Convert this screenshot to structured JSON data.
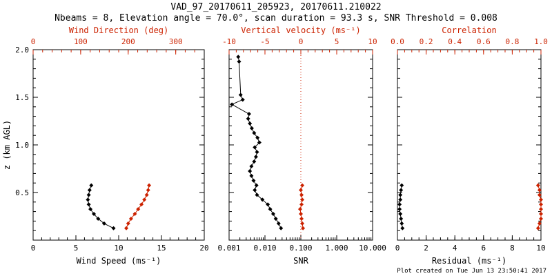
{
  "colors": {
    "black": "#000000",
    "red": "#cc2200",
    "background": "#ffffff"
  },
  "chart_data": {
    "type": "line",
    "title": "VAD_97_20170611_205923, 20170611.210022",
    "subtitle": "Nbeams = 8, Elevation angle = 70.0°, scan duration = 93.3 s, SNR Threshold = 0.008",
    "footer": "Plot created on Tue Jun 13 23:50:41 2017",
    "ylabel": "z (km AGL)",
    "ylim": [
      0,
      2.0
    ],
    "yticks": [
      0,
      0.5,
      1.0,
      1.5,
      2.0
    ],
    "ytick_labels": [
      "",
      "0.5",
      "1.0",
      "1.5",
      "2.0"
    ],
    "y_minor_step": 0.1,
    "panels": [
      {
        "id": "wind",
        "bottom_axis": {
          "label": "Wind Speed (ms⁻¹)",
          "lim": [
            0,
            20
          ],
          "ticks": [
            0,
            5,
            10,
            15,
            20
          ],
          "tick_labels": [
            "0",
            "5",
            "10",
            "15",
            "20"
          ],
          "minor_step": 1,
          "color": "black"
        },
        "top_axis": {
          "label": "Wind Direction (deg)",
          "lim": [
            0,
            360
          ],
          "ticks": [
            0,
            100,
            200,
            300
          ],
          "tick_labels": [
            "0",
            "100",
            "200",
            "300"
          ],
          "minor_step": 20,
          "color": "red"
        },
        "series": [
          {
            "name": "wind-speed",
            "axis": "bottom",
            "color": "black",
            "z": [
              0.125,
              0.175,
              0.225,
              0.275,
              0.325,
              0.375,
              0.425,
              0.475,
              0.525,
              0.575
            ],
            "values": [
              9.4,
              8.3,
              7.6,
              7.1,
              6.7,
              6.5,
              6.4,
              6.5,
              6.6,
              6.8
            ]
          },
          {
            "name": "wind-direction",
            "axis": "top",
            "color": "red",
            "z": [
              0.125,
              0.175,
              0.225,
              0.275,
              0.325,
              0.375,
              0.425,
              0.475,
              0.525,
              0.575
            ],
            "values": [
              196,
              200,
              206,
              214,
              221,
              228,
              234,
              239,
              242,
              244
            ]
          }
        ]
      },
      {
        "id": "snr",
        "bottom_axis": {
          "label": "SNR",
          "lim": [
            0.001,
            10.0
          ],
          "log": true,
          "ticks": [
            0.001,
            0.01,
            0.1,
            1.0,
            10.0
          ],
          "tick_labels": [
            "0.001",
            "0.010",
            "0.100",
            "1.000",
            "10.000"
          ],
          "color": "black"
        },
        "top_axis": {
          "label": "Vertical velocity (ms⁻¹)",
          "lim": [
            -10,
            10
          ],
          "ticks": [
            -10,
            -5,
            0,
            5,
            10
          ],
          "tick_labels": [
            "-10",
            "-5",
            "0",
            "5",
            "10"
          ],
          "minor_step": 1,
          "color": "red"
        },
        "refline": {
          "axis": "top",
          "value": 0,
          "color": "red",
          "style": "dotted"
        },
        "series": [
          {
            "name": "snr-profile",
            "axis": "bottom",
            "color": "black",
            "z": [
              0.125,
              0.175,
              0.225,
              0.275,
              0.325,
              0.375,
              0.425,
              0.475,
              0.525,
              0.575,
              0.625,
              0.675,
              0.725,
              0.775,
              0.825,
              0.875,
              0.925,
              0.975,
              1.025,
              1.075,
              1.125,
              1.175,
              1.225,
              1.275,
              1.325,
              1.425,
              1.475,
              1.525,
              1.875,
              1.925
            ],
            "values": [
              0.028,
              0.024,
              0.02,
              0.017,
              0.014,
              0.012,
              0.0085,
              0.006,
              0.0052,
              0.0058,
              0.0048,
              0.0042,
              0.0038,
              0.0042,
              0.005,
              0.0056,
              0.006,
              0.0052,
              0.007,
              0.0062,
              0.005,
              0.0043,
              0.0038,
              0.0034,
              0.0036,
              0.0012,
              0.0024,
              0.0021,
              0.0019,
              0.0018
            ]
          },
          {
            "name": "vertical-velocity",
            "axis": "top",
            "color": "red",
            "z": [
              0.125,
              0.175,
              0.225,
              0.275,
              0.325,
              0.375,
              0.425,
              0.475,
              0.525,
              0.575
            ],
            "values": [
              0.3,
              0.2,
              0.1,
              0.0,
              -0.1,
              0.1,
              0.2,
              0.1,
              0.0,
              0.2
            ]
          }
        ]
      },
      {
        "id": "residual",
        "bottom_axis": {
          "label": "Residual (ms⁻¹)",
          "lim": [
            0,
            10
          ],
          "ticks": [
            0,
            2,
            4,
            6,
            8,
            10
          ],
          "tick_labels": [
            "0",
            "2",
            "4",
            "6",
            "8",
            "10"
          ],
          "minor_step": 0.5,
          "color": "black"
        },
        "top_axis": {
          "label": "Correlation",
          "lim": [
            0,
            1
          ],
          "ticks": [
            0,
            0.2,
            0.4,
            0.6,
            0.8,
            1.0
          ],
          "tick_labels": [
            "0.0",
            "0.2",
            "0.4",
            "0.6",
            "0.8",
            "1.0"
          ],
          "minor_step": 0.05,
          "color": "red"
        },
        "series": [
          {
            "name": "residual",
            "axis": "bottom",
            "color": "black",
            "z": [
              0.125,
              0.175,
              0.225,
              0.275,
              0.325,
              0.375,
              0.425,
              0.475,
              0.525,
              0.575
            ],
            "values": [
              0.35,
              0.3,
              0.25,
              0.2,
              0.15,
              0.15,
              0.2,
              0.2,
              0.25,
              0.3
            ]
          },
          {
            "name": "correlation",
            "axis": "top",
            "color": "red",
            "z": [
              0.125,
              0.175,
              0.225,
              0.275,
              0.325,
              0.375,
              0.425,
              0.475,
              0.525,
              0.575
            ],
            "values": [
              0.98,
              0.99,
              1.0,
              1.0,
              1.0,
              1.0,
              1.0,
              0.99,
              0.99,
              0.98
            ]
          }
        ]
      }
    ]
  }
}
